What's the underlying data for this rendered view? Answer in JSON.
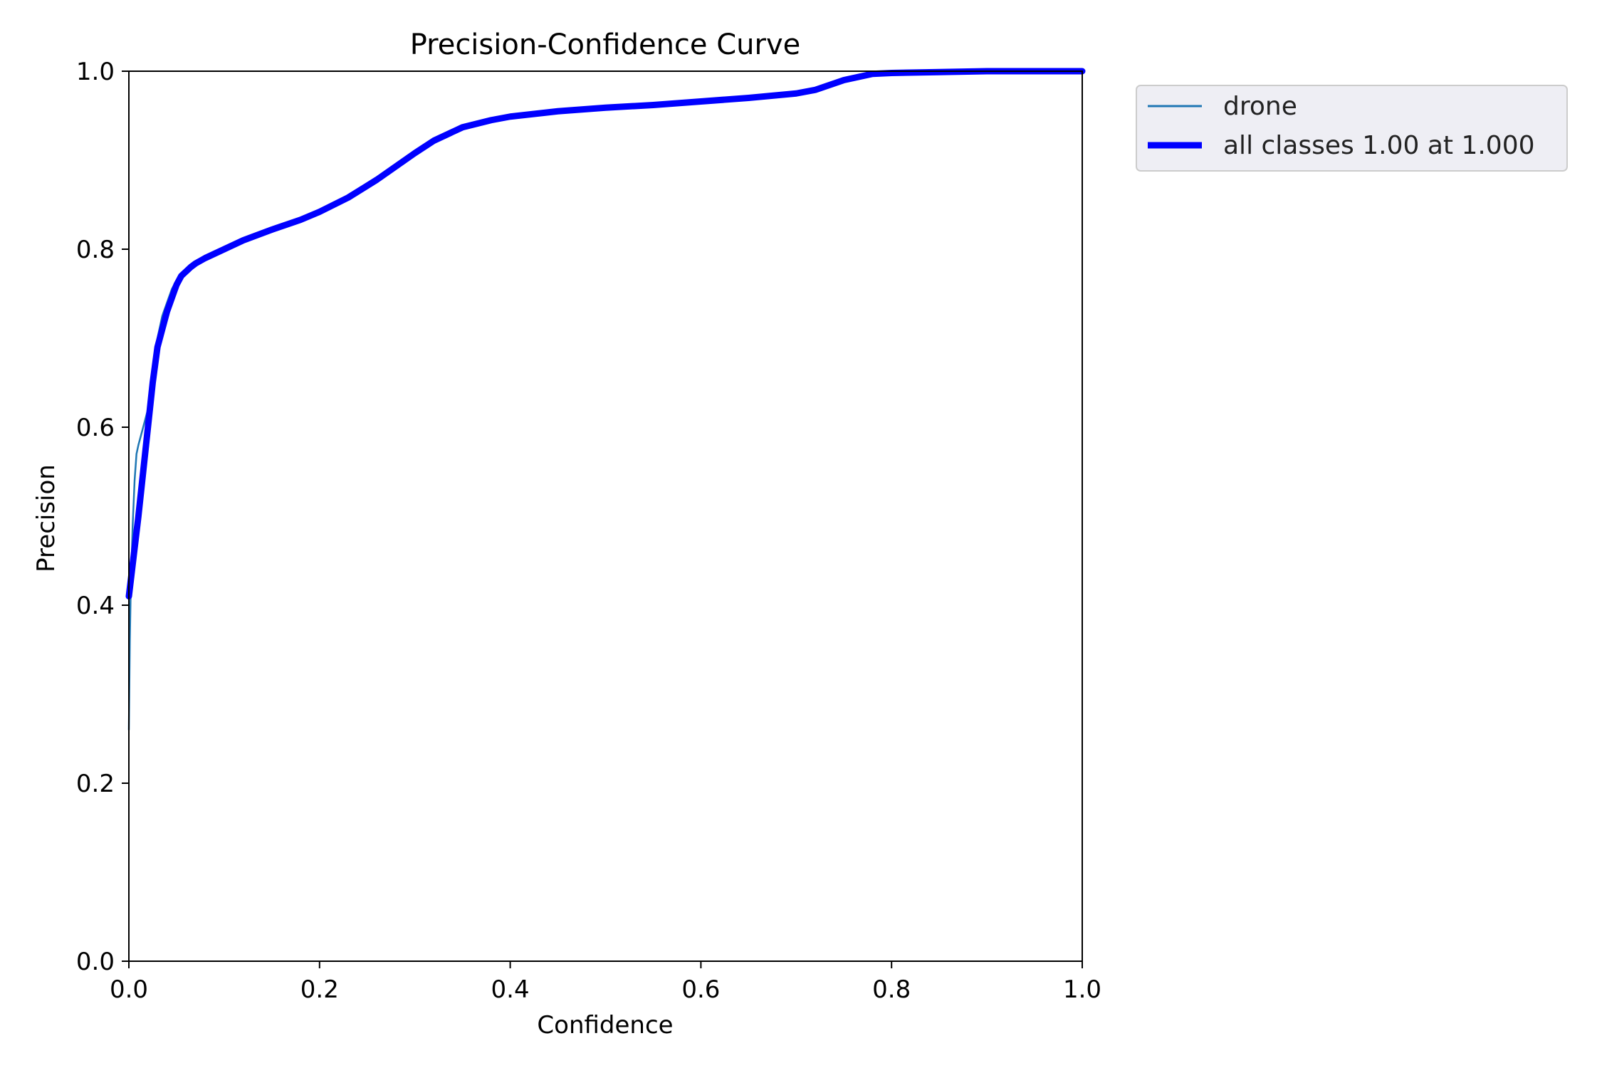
{
  "chart_data": {
    "type": "line",
    "title": "Precision-Confidence Curve",
    "xlabel": "Confidence",
    "ylabel": "Precision",
    "xlim": [
      0.0,
      1.0
    ],
    "ylim": [
      0.0,
      1.0
    ],
    "xticks": [
      "0.0",
      "0.2",
      "0.4",
      "0.6",
      "0.8",
      "1.0"
    ],
    "yticks": [
      "0.0",
      "0.2",
      "0.4",
      "0.6",
      "0.8",
      "1.0"
    ],
    "grid": false,
    "legend_position": "outside-top-right",
    "series": [
      {
        "name": "drone",
        "color": "#1f77b4",
        "x": [
          0.0,
          0.001,
          0.002,
          0.004,
          0.006,
          0.008,
          0.01,
          0.015,
          0.02,
          0.025,
          0.03,
          0.035,
          0.04,
          0.045,
          0.05,
          0.055,
          0.06,
          0.065,
          0.07,
          0.08,
          0.1,
          0.12,
          0.15,
          0.18,
          0.2,
          0.23,
          0.26,
          0.3,
          0.32,
          0.35,
          0.38,
          0.4,
          0.45,
          0.5,
          0.55,
          0.6,
          0.65,
          0.7,
          0.72,
          0.75,
          0.78,
          0.8,
          0.85,
          0.9,
          0.95,
          1.0
        ],
        "y": [
          0.26,
          0.36,
          0.42,
          0.49,
          0.54,
          0.57,
          0.58,
          0.6,
          0.62,
          0.66,
          0.7,
          0.725,
          0.74,
          0.755,
          0.765,
          0.77,
          0.775,
          0.778,
          0.782,
          0.79,
          0.8,
          0.81,
          0.822,
          0.833,
          0.842,
          0.858,
          0.878,
          0.908,
          0.922,
          0.937,
          0.945,
          0.949,
          0.955,
          0.959,
          0.962,
          0.966,
          0.97,
          0.975,
          0.979,
          0.99,
          0.997,
          0.998,
          0.999,
          1.0,
          1.0,
          1.0
        ]
      },
      {
        "name": "all classes 1.00 at 1.000",
        "color": "#0000ff",
        "x": [
          0.0,
          0.005,
          0.01,
          0.015,
          0.02,
          0.025,
          0.03,
          0.035,
          0.04,
          0.045,
          0.05,
          0.055,
          0.06,
          0.065,
          0.07,
          0.08,
          0.1,
          0.12,
          0.15,
          0.18,
          0.2,
          0.23,
          0.26,
          0.3,
          0.32,
          0.35,
          0.38,
          0.4,
          0.45,
          0.5,
          0.55,
          0.6,
          0.65,
          0.7,
          0.72,
          0.75,
          0.78,
          0.8,
          0.85,
          0.9,
          0.95,
          1.0
        ],
        "y": [
          0.41,
          0.455,
          0.5,
          0.55,
          0.6,
          0.65,
          0.69,
          0.71,
          0.73,
          0.745,
          0.76,
          0.77,
          0.775,
          0.78,
          0.784,
          0.79,
          0.8,
          0.81,
          0.822,
          0.833,
          0.842,
          0.858,
          0.878,
          0.908,
          0.922,
          0.937,
          0.945,
          0.949,
          0.955,
          0.959,
          0.962,
          0.966,
          0.97,
          0.975,
          0.979,
          0.99,
          0.997,
          0.998,
          0.999,
          1.0,
          1.0,
          1.0
        ]
      }
    ]
  }
}
